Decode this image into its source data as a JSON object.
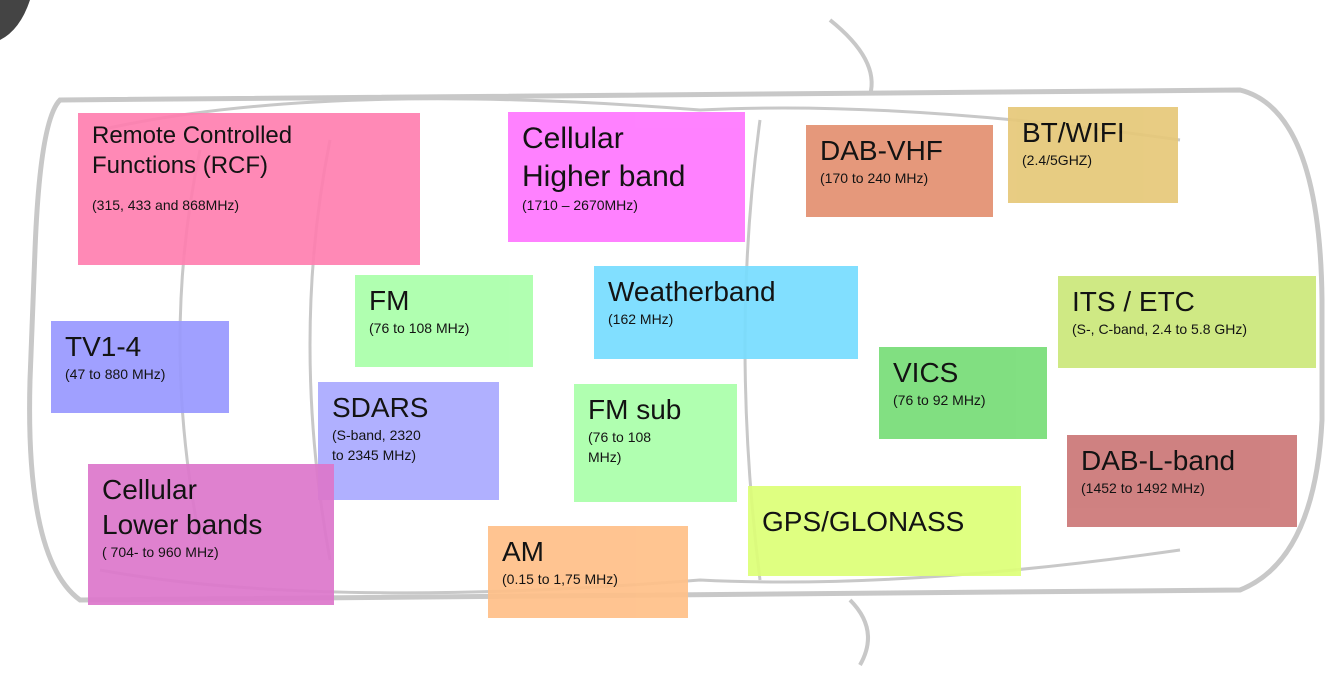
{
  "boxes": [
    {
      "title": [
        "Remote Controlled",
        "Functions (RCF)"
      ],
      "subtitle": [
        "(315, 433 and 868MHz)"
      ]
    },
    {
      "title": [
        "Cellular",
        "Higher band"
      ],
      "subtitle": [
        "(1710 – 2670MHz)"
      ]
    },
    {
      "title": [
        "DAB-VHF"
      ],
      "subtitle": [
        "(170 to 240 MHz)"
      ]
    },
    {
      "title": [
        "BT/WIFI"
      ],
      "subtitle": [
        "(2.4/5GHZ)"
      ]
    },
    {
      "title": [
        "FM"
      ],
      "subtitle": [
        "(76 to 108 MHz)"
      ]
    },
    {
      "title": [
        "Weatherband"
      ],
      "subtitle": [
        "(162 MHz)"
      ]
    },
    {
      "title": [
        "ITS / ETC"
      ],
      "subtitle": [
        "(S-, C-band, 2.4 to 5.8 GHz)"
      ]
    },
    {
      "title": [
        "TV1-4"
      ],
      "subtitle": [
        "(47 to 880 MHz)"
      ]
    },
    {
      "title": [
        "SDARS"
      ],
      "subtitle": [
        "(S-band, 2320",
        "to 2345 MHz)"
      ]
    },
    {
      "title": [
        "FM sub"
      ],
      "subtitle": [
        "(76 to 108",
        "MHz)"
      ]
    },
    {
      "title": [
        "VICS"
      ],
      "subtitle": [
        "(76 to 92 MHz)"
      ]
    },
    {
      "title": [
        "DAB-L-band"
      ],
      "subtitle": [
        "(1452 to 1492 MHz)"
      ]
    },
    {
      "title": [
        "Cellular",
        "Lower bands"
      ],
      "subtitle": [
        "( 704- to 960 MHz)"
      ]
    },
    {
      "title": [
        "GPS/GLONASS"
      ]
    },
    {
      "title": [
        "AM"
      ],
      "subtitle": [
        "(0.15 to 1,75 MHz)"
      ]
    }
  ]
}
